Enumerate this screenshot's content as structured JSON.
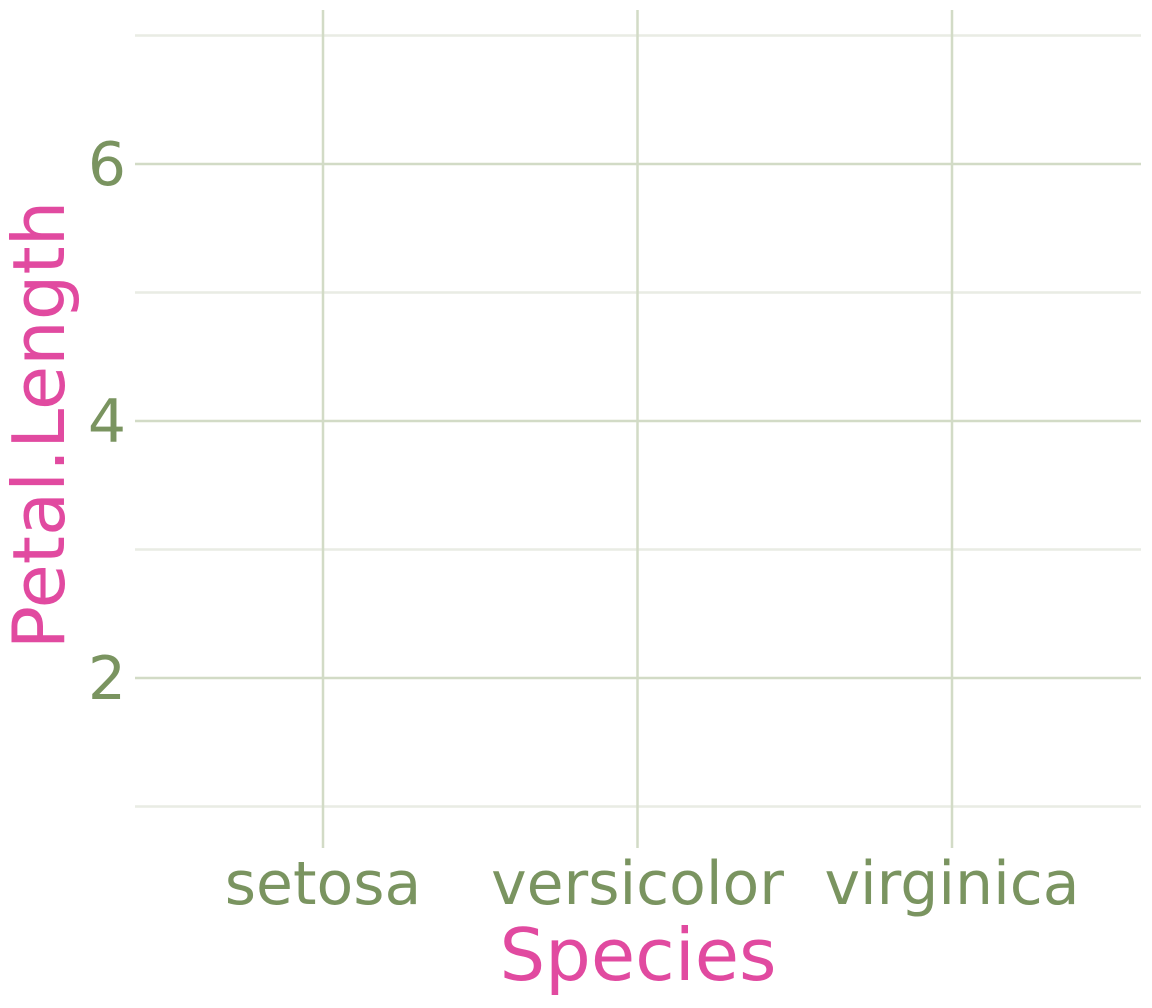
{
  "colors": {
    "background": "#ffffff",
    "tick_label": "#7a9460",
    "axis_title": "#e14aa0",
    "grid_major": "#d2dbc6",
    "grid_minor": "#e9ece4"
  },
  "chart_data": {
    "type": "scatter",
    "xlabel": "Species",
    "ylabel": "Petal.Length",
    "categories": [
      "setosa",
      "versicolor",
      "virginica"
    ],
    "y_ticks": [
      "2",
      "4",
      "6"
    ],
    "y_tick_values": [
      2,
      4,
      6
    ],
    "y_minor_values": [
      1,
      3,
      5,
      7
    ],
    "ylim": [
      0.8,
      7.2
    ],
    "grid": true,
    "legend": "none",
    "series": []
  }
}
